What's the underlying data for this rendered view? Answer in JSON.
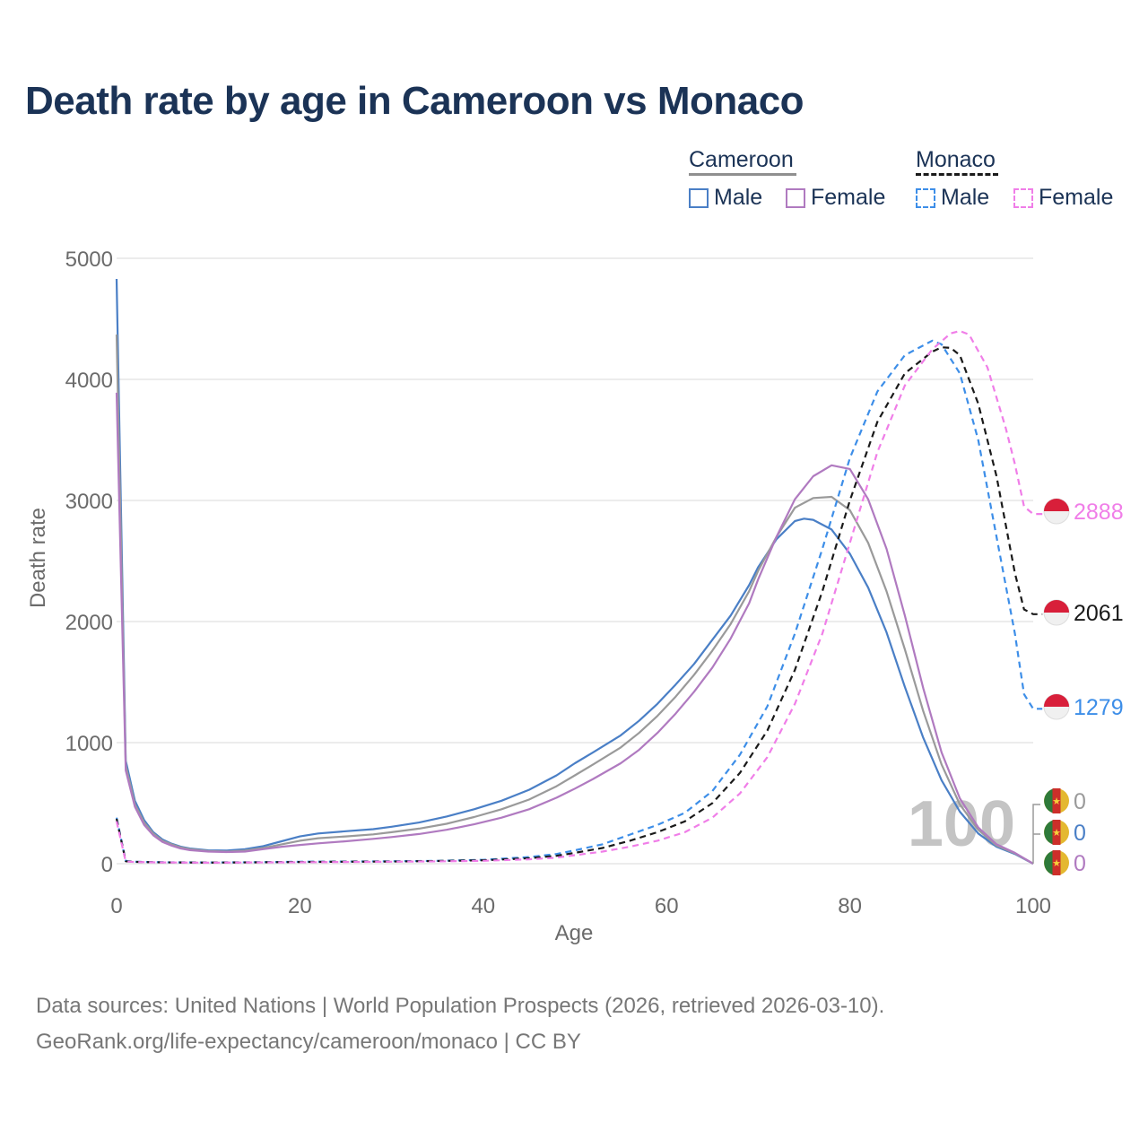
{
  "title": "Death rate by age in Cameroon vs Monaco",
  "legend": {
    "groups": [
      {
        "name": "Cameroon",
        "color": "#8f8f8f",
        "items": [
          {
            "label": "Male",
            "color": "#4a7fc6",
            "style": "solid"
          },
          {
            "label": "Female",
            "color": "#b07ac0",
            "style": "solid"
          }
        ]
      },
      {
        "name": "Monaco",
        "color": "#1a1a1a",
        "items": [
          {
            "label": "Male",
            "color": "#3d8ee8",
            "style": "dashed"
          },
          {
            "label": "Female",
            "color": "#f07ee8",
            "style": "dashed"
          }
        ]
      }
    ]
  },
  "overlay_year": "100",
  "sources": {
    "line1": "Data sources: United Nations | World Population Prospects (2026, retrieved 2026-03-10).",
    "line2": "GeoRank.org/life-expectancy/cameroon/monaco | CC BY"
  },
  "chart_data": {
    "type": "line",
    "title": "Death rate by age in Cameroon vs Monaco",
    "xlabel": "Age",
    "ylabel": "Death rate",
    "xlim": [
      0,
      100
    ],
    "ylim": [
      0,
      5000
    ],
    "xticks": [
      0,
      20,
      40,
      60,
      80,
      100
    ],
    "yticks": [
      0,
      1000,
      2000,
      3000,
      4000,
      5000
    ],
    "grid": true,
    "series": [
      {
        "name": "Cameroon Male",
        "color": "#4a7fc6",
        "dash": false,
        "end_label": "0",
        "flag": "cameroon",
        "points": [
          [
            0,
            4830
          ],
          [
            1,
            850
          ],
          [
            2,
            520
          ],
          [
            3,
            360
          ],
          [
            4,
            260
          ],
          [
            5,
            200
          ],
          [
            6,
            165
          ],
          [
            7,
            140
          ],
          [
            8,
            125
          ],
          [
            10,
            110
          ],
          [
            12,
            108
          ],
          [
            14,
            120
          ],
          [
            16,
            145
          ],
          [
            18,
            185
          ],
          [
            20,
            225
          ],
          [
            22,
            250
          ],
          [
            25,
            268
          ],
          [
            28,
            285
          ],
          [
            30,
            305
          ],
          [
            33,
            340
          ],
          [
            36,
            390
          ],
          [
            39,
            450
          ],
          [
            42,
            520
          ],
          [
            45,
            610
          ],
          [
            48,
            730
          ],
          [
            50,
            830
          ],
          [
            52,
            920
          ],
          [
            55,
            1060
          ],
          [
            57,
            1180
          ],
          [
            59,
            1320
          ],
          [
            61,
            1480
          ],
          [
            63,
            1650
          ],
          [
            65,
            1850
          ],
          [
            67,
            2050
          ],
          [
            69,
            2300
          ],
          [
            70,
            2450
          ],
          [
            72,
            2680
          ],
          [
            74,
            2830
          ],
          [
            75,
            2850
          ],
          [
            76,
            2840
          ],
          [
            78,
            2760
          ],
          [
            80,
            2560
          ],
          [
            82,
            2280
          ],
          [
            84,
            1910
          ],
          [
            86,
            1460
          ],
          [
            88,
            1040
          ],
          [
            90,
            690
          ],
          [
            92,
            430
          ],
          [
            94,
            250
          ],
          [
            96,
            140
          ],
          [
            98,
            80
          ],
          [
            100,
            0
          ]
        ]
      },
      {
        "name": "Cameroon Both",
        "color": "#9a9a9a",
        "dash": false,
        "end_label": "0",
        "flag": "cameroon",
        "points": [
          [
            0,
            4370
          ],
          [
            1,
            810
          ],
          [
            2,
            490
          ],
          [
            3,
            340
          ],
          [
            4,
            250
          ],
          [
            5,
            190
          ],
          [
            6,
            160
          ],
          [
            7,
            135
          ],
          [
            8,
            120
          ],
          [
            10,
            105
          ],
          [
            12,
            100
          ],
          [
            14,
            108
          ],
          [
            16,
            130
          ],
          [
            18,
            160
          ],
          [
            20,
            190
          ],
          [
            22,
            210
          ],
          [
            25,
            225
          ],
          [
            28,
            242
          ],
          [
            30,
            260
          ],
          [
            33,
            290
          ],
          [
            36,
            330
          ],
          [
            39,
            385
          ],
          [
            42,
            450
          ],
          [
            45,
            530
          ],
          [
            48,
            640
          ],
          [
            50,
            730
          ],
          [
            52,
            820
          ],
          [
            55,
            960
          ],
          [
            57,
            1080
          ],
          [
            59,
            1220
          ],
          [
            61,
            1380
          ],
          [
            63,
            1560
          ],
          [
            65,
            1760
          ],
          [
            67,
            1980
          ],
          [
            69,
            2250
          ],
          [
            70,
            2420
          ],
          [
            72,
            2700
          ],
          [
            74,
            2940
          ],
          [
            76,
            3020
          ],
          [
            78,
            3030
          ],
          [
            80,
            2920
          ],
          [
            82,
            2650
          ],
          [
            84,
            2250
          ],
          [
            86,
            1770
          ],
          [
            88,
            1260
          ],
          [
            90,
            820
          ],
          [
            92,
            490
          ],
          [
            94,
            280
          ],
          [
            96,
            150
          ],
          [
            98,
            85
          ],
          [
            100,
            0
          ]
        ]
      },
      {
        "name": "Cameroon Female",
        "color": "#b07ac0",
        "dash": false,
        "end_label": "0",
        "flag": "cameroon",
        "points": [
          [
            0,
            3890
          ],
          [
            1,
            770
          ],
          [
            2,
            470
          ],
          [
            3,
            320
          ],
          [
            4,
            235
          ],
          [
            5,
            180
          ],
          [
            6,
            150
          ],
          [
            7,
            125
          ],
          [
            8,
            112
          ],
          [
            10,
            100
          ],
          [
            12,
            96
          ],
          [
            14,
            100
          ],
          [
            16,
            120
          ],
          [
            18,
            140
          ],
          [
            20,
            155
          ],
          [
            22,
            168
          ],
          [
            25,
            185
          ],
          [
            28,
            205
          ],
          [
            30,
            220
          ],
          [
            33,
            245
          ],
          [
            36,
            280
          ],
          [
            39,
            325
          ],
          [
            42,
            380
          ],
          [
            45,
            450
          ],
          [
            48,
            545
          ],
          [
            50,
            620
          ],
          [
            52,
            700
          ],
          [
            55,
            830
          ],
          [
            57,
            940
          ],
          [
            59,
            1080
          ],
          [
            61,
            1240
          ],
          [
            63,
            1420
          ],
          [
            65,
            1620
          ],
          [
            67,
            1860
          ],
          [
            69,
            2150
          ],
          [
            70,
            2350
          ],
          [
            72,
            2700
          ],
          [
            74,
            3010
          ],
          [
            76,
            3200
          ],
          [
            78,
            3290
          ],
          [
            80,
            3260
          ],
          [
            82,
            3010
          ],
          [
            84,
            2600
          ],
          [
            86,
            2050
          ],
          [
            88,
            1450
          ],
          [
            90,
            920
          ],
          [
            92,
            540
          ],
          [
            94,
            300
          ],
          [
            96,
            160
          ],
          [
            98,
            90
          ],
          [
            100,
            0
          ]
        ]
      },
      {
        "name": "Monaco Male",
        "color": "#3d8ee8",
        "dash": true,
        "end_label": "1279",
        "flag": "monaco",
        "points": [
          [
            0,
            380
          ],
          [
            1,
            22
          ],
          [
            2,
            16
          ],
          [
            5,
            12
          ],
          [
            10,
            10
          ],
          [
            15,
            12
          ],
          [
            20,
            16
          ],
          [
            25,
            18
          ],
          [
            30,
            20
          ],
          [
            35,
            24
          ],
          [
            40,
            32
          ],
          [
            45,
            55
          ],
          [
            48,
            80
          ],
          [
            50,
            110
          ],
          [
            53,
            160
          ],
          [
            56,
            240
          ],
          [
            59,
            320
          ],
          [
            62,
            420
          ],
          [
            65,
            600
          ],
          [
            68,
            900
          ],
          [
            71,
            1300
          ],
          [
            74,
            1900
          ],
          [
            77,
            2600
          ],
          [
            80,
            3350
          ],
          [
            83,
            3900
          ],
          [
            86,
            4200
          ],
          [
            89,
            4320
          ],
          [
            90,
            4290
          ],
          [
            92,
            4050
          ],
          [
            94,
            3500
          ],
          [
            96,
            2700
          ],
          [
            98,
            1900
          ],
          [
            99,
            1400
          ],
          [
            100,
            1279
          ],
          [
            101,
            1279
          ]
        ]
      },
      {
        "name": "Monaco Both",
        "color": "#1a1a1a",
        "dash": true,
        "end_label": "2061",
        "flag": "monaco",
        "points": [
          [
            0,
            370
          ],
          [
            1,
            20
          ],
          [
            2,
            15
          ],
          [
            5,
            11
          ],
          [
            10,
            9
          ],
          [
            15,
            11
          ],
          [
            20,
            14
          ],
          [
            25,
            16
          ],
          [
            30,
            18
          ],
          [
            35,
            22
          ],
          [
            40,
            28
          ],
          [
            45,
            45
          ],
          [
            48,
            65
          ],
          [
            50,
            90
          ],
          [
            53,
            130
          ],
          [
            56,
            190
          ],
          [
            59,
            260
          ],
          [
            62,
            350
          ],
          [
            65,
            500
          ],
          [
            68,
            750
          ],
          [
            71,
            1100
          ],
          [
            74,
            1600
          ],
          [
            77,
            2250
          ],
          [
            80,
            3000
          ],
          [
            83,
            3650
          ],
          [
            86,
            4050
          ],
          [
            89,
            4230
          ],
          [
            90,
            4265
          ],
          [
            91,
            4260
          ],
          [
            92,
            4200
          ],
          [
            94,
            3800
          ],
          [
            96,
            3200
          ],
          [
            98,
            2400
          ],
          [
            99,
            2100
          ],
          [
            100,
            2061
          ],
          [
            101,
            2061
          ]
        ]
      },
      {
        "name": "Monaco Female",
        "color": "#f07ee8",
        "dash": true,
        "end_label": "2888",
        "flag": "monaco",
        "points": [
          [
            0,
            350
          ],
          [
            1,
            18
          ],
          [
            2,
            14
          ],
          [
            5,
            10
          ],
          [
            10,
            8
          ],
          [
            15,
            10
          ],
          [
            20,
            12
          ],
          [
            25,
            14
          ],
          [
            30,
            16
          ],
          [
            35,
            19
          ],
          [
            40,
            24
          ],
          [
            45,
            36
          ],
          [
            48,
            50
          ],
          [
            50,
            70
          ],
          [
            53,
            100
          ],
          [
            56,
            140
          ],
          [
            59,
            190
          ],
          [
            62,
            260
          ],
          [
            65,
            380
          ],
          [
            68,
            580
          ],
          [
            71,
            880
          ],
          [
            74,
            1320
          ],
          [
            77,
            1900
          ],
          [
            80,
            2650
          ],
          [
            83,
            3400
          ],
          [
            86,
            3950
          ],
          [
            89,
            4250
          ],
          [
            91,
            4380
          ],
          [
            92,
            4400
          ],
          [
            93,
            4370
          ],
          [
            95,
            4100
          ],
          [
            97,
            3600
          ],
          [
            98,
            3300
          ],
          [
            99,
            2950
          ],
          [
            100,
            2888
          ],
          [
            101,
            2888
          ]
        ]
      }
    ],
    "end_labels": [
      {
        "series": "Monaco Female",
        "label": "2888",
        "color": "#f07ee8",
        "flag": "monaco"
      },
      {
        "series": "Monaco Both",
        "label": "2061",
        "color": "#1a1a1a",
        "flag": "monaco"
      },
      {
        "series": "Monaco Male",
        "label": "1279",
        "color": "#3d8ee8",
        "flag": "monaco"
      },
      {
        "series": "Cameroon Both",
        "label": "0",
        "color": "#9a9a9a",
        "flag": "cameroon"
      },
      {
        "series": "Cameroon Male",
        "label": "0",
        "color": "#4a7fc6",
        "flag": "cameroon"
      },
      {
        "series": "Cameroon Female",
        "label": "0",
        "color": "#b07ac0",
        "flag": "cameroon"
      }
    ]
  }
}
